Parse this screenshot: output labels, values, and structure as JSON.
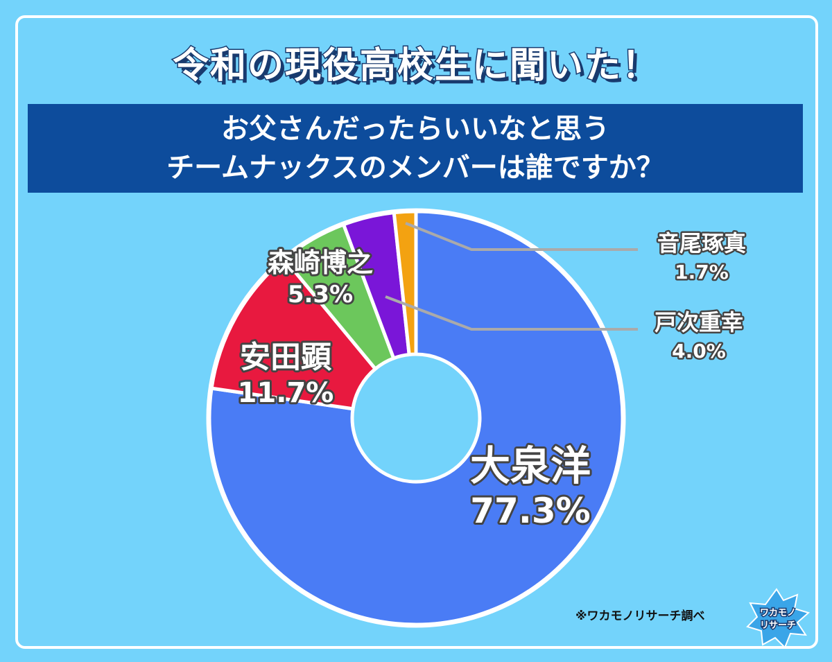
{
  "title": "令和の現役高校生に聞いた！",
  "question": {
    "line1": "お父さんだったらいいなと思う",
    "line2": "チームナックスのメンバーは誰ですか？"
  },
  "credit": "※ワカモノリサーチ調べ",
  "logo": {
    "text": "ワカモノリサーチ"
  },
  "chart_data": {
    "type": "pie",
    "donut": true,
    "start": "top, clockwise",
    "categories": [
      "大泉洋",
      "安田顕",
      "森崎博之",
      "戸次重幸",
      "音尾琢真"
    ],
    "values": [
      77.3,
      11.7,
      5.3,
      4.0,
      1.7
    ],
    "labels": [
      "77.3%",
      "11.7%",
      "5.3%",
      "4.0%",
      "1.7%"
    ],
    "colors": [
      "#4a7cf5",
      "#e8193f",
      "#6cc75c",
      "#7a16d8",
      "#f3a211"
    ]
  }
}
